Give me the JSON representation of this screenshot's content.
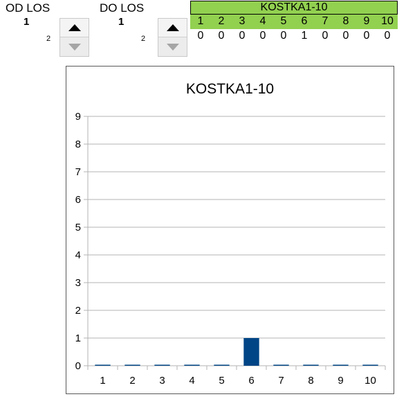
{
  "from_control": {
    "label": "OD LOS",
    "value": "1",
    "step_hint": "2"
  },
  "to_control": {
    "label": "DO LOS",
    "value": "1",
    "step_hint": "2"
  },
  "table": {
    "title": "KOSTKA1-10",
    "header_color": "#92d050",
    "indices": [
      "1",
      "2",
      "3",
      "4",
      "5",
      "6",
      "7",
      "8",
      "9",
      "10"
    ],
    "counts": [
      "0",
      "0",
      "0",
      "0",
      "0",
      "1",
      "0",
      "0",
      "0",
      "0"
    ]
  },
  "chart_data": {
    "type": "bar",
    "title": "KOSTKA1-10",
    "categories": [
      "1",
      "2",
      "3",
      "4",
      "5",
      "6",
      "7",
      "8",
      "9",
      "10"
    ],
    "values": [
      0,
      0,
      0,
      0,
      0,
      1,
      0,
      0,
      0,
      0
    ],
    "ylim": [
      0,
      9
    ],
    "yticks": [
      "0",
      "1",
      "2",
      "3",
      "4",
      "5",
      "6",
      "7",
      "8",
      "9"
    ],
    "grid": true,
    "bar_color": "#004586"
  }
}
